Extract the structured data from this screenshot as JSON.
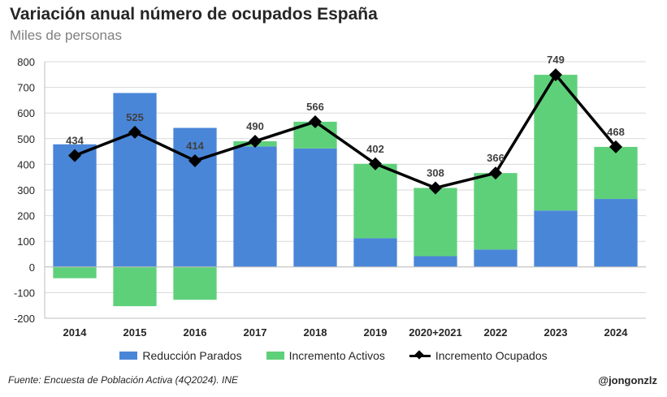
{
  "title": "Variación anual número de ocupados España",
  "subtitle": "Miles de personas",
  "footer": {
    "source": "Fuente: Encuesta de Población Activa (4Q2024). INE",
    "handle": "@jongonzlz"
  },
  "colors": {
    "parados": "#4a86d8",
    "activos": "#5fd07a",
    "ocupados": "#000000",
    "grid": "#d9d9d9"
  },
  "chart_data": {
    "type": "bar",
    "stacked": true,
    "categories": [
      "2014",
      "2015",
      "2016",
      "2017",
      "2018",
      "2019",
      "2020+2021",
      "2022",
      "2023",
      "2024"
    ],
    "series": [
      {
        "name": "Reducción Parados",
        "type": "bar",
        "values": [
          478,
          678,
          542,
          470,
          462,
          112,
          42,
          68,
          220,
          265
        ]
      },
      {
        "name": "Incremento Activos",
        "type": "bar",
        "values": [
          -44,
          -153,
          -128,
          20,
          104,
          290,
          266,
          298,
          529,
          203
        ]
      },
      {
        "name": "Incremento Ocupados",
        "type": "line",
        "values": [
          434,
          525,
          414,
          490,
          566,
          402,
          308,
          366,
          749,
          468
        ]
      }
    ],
    "data_labels": [
      "434",
      "525",
      "414",
      "490",
      "566",
      "402",
      "308",
      "366",
      "749",
      "468"
    ],
    "y_ticks": [
      "800",
      "700",
      "600",
      "500",
      "400",
      "300",
      "200",
      "100",
      "0",
      "-100",
      "-200"
    ],
    "ylim": [
      -200,
      800
    ],
    "grid": true,
    "legend_position": "bottom"
  }
}
